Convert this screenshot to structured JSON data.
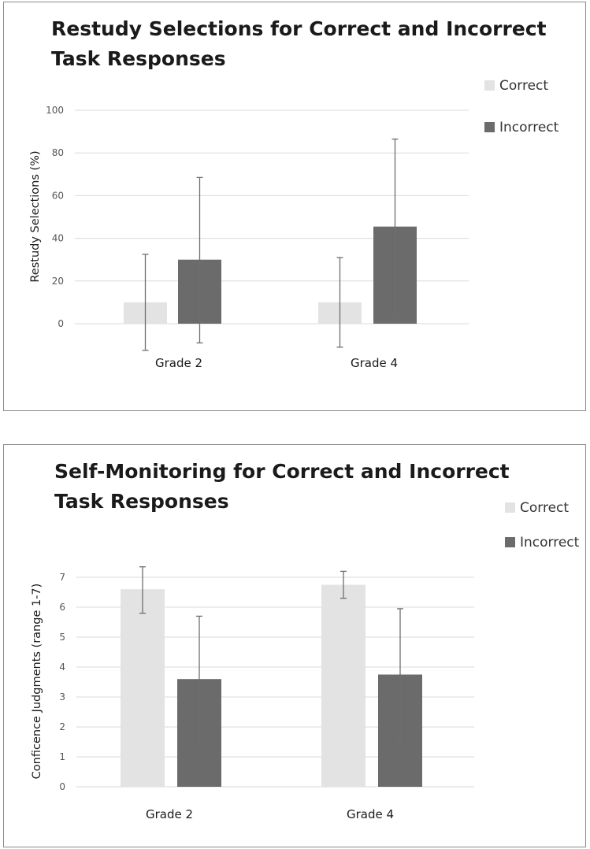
{
  "charts": {
    "restudy": {
      "type": "bar",
      "title_lines": [
        "Restudy Selections for Correct and Incorrect",
        "Task Responses"
      ],
      "ylabel": "Restudy Selections (%)",
      "categories": [
        "Grade 2",
        "Grade 4"
      ],
      "ylim": [
        0,
        100
      ],
      "yticks": [
        "0",
        "20",
        "40",
        "60",
        "80",
        "100"
      ],
      "legend_position": "top-right",
      "grid": true,
      "series": [
        {
          "name": "Correct",
          "color": "#e3e3e3",
          "values": [
            10,
            10
          ],
          "error_low": [
            -12.5,
            -11
          ],
          "error_high": [
            32.5,
            31
          ]
        },
        {
          "name": "Incorrect",
          "color": "#6b6b6b",
          "values": [
            30,
            45.5
          ],
          "error_low": [
            -9,
            4
          ],
          "error_high": [
            68.5,
            86.5
          ]
        }
      ]
    },
    "confidence": {
      "type": "bar",
      "title_lines": [
        "Self-Monitoring for Correct and Incorrect",
        "Task Responses"
      ],
      "ylabel": "Conficence Judgments (range 1-7)",
      "categories": [
        "Grade 2",
        "Grade 4"
      ],
      "ylim": [
        0,
        7
      ],
      "yticks": [
        "0",
        "1",
        "2",
        "3",
        "4",
        "5",
        "6",
        "7"
      ],
      "legend_position": "top-right",
      "grid": true,
      "series": [
        {
          "name": "Correct",
          "color": "#e3e3e3",
          "values": [
            6.6,
            6.75
          ],
          "error_low": [
            5.8,
            6.3
          ],
          "error_high": [
            7.35,
            7.2
          ]
        },
        {
          "name": "Incorrect",
          "color": "#6b6b6b",
          "values": [
            3.6,
            3.75
          ],
          "error_low": [
            1.45,
            1.5
          ],
          "error_high": [
            5.7,
            5.95
          ]
        }
      ]
    }
  },
  "chart_data": [
    {
      "type": "bar",
      "title": "Restudy Selections for Correct and Incorrect Task Responses",
      "xlabel": "",
      "ylabel": "Restudy Selections (%)",
      "categories": [
        "Grade 2",
        "Grade 4"
      ],
      "ylim": [
        0,
        100
      ],
      "grid": true,
      "legend_position": "top-right",
      "series": [
        {
          "name": "Correct",
          "values": [
            10,
            10
          ],
          "error_low": [
            -12.5,
            -11
          ],
          "error_high": [
            32.5,
            31
          ]
        },
        {
          "name": "Incorrect",
          "values": [
            30,
            45.5
          ],
          "error_low": [
            -9,
            4
          ],
          "error_high": [
            68.5,
            86.5
          ]
        }
      ]
    },
    {
      "type": "bar",
      "title": "Self-Monitoring for Correct and Incorrect Task Responses",
      "xlabel": "",
      "ylabel": "Conficence Judgments (range 1-7)",
      "categories": [
        "Grade 2",
        "Grade 4"
      ],
      "ylim": [
        0,
        7
      ],
      "grid": true,
      "legend_position": "top-right",
      "series": [
        {
          "name": "Correct",
          "values": [
            6.6,
            6.75
          ],
          "error_low": [
            5.8,
            6.3
          ],
          "error_high": [
            7.35,
            7.2
          ]
        },
        {
          "name": "Incorrect",
          "values": [
            3.6,
            3.75
          ],
          "error_low": [
            1.45,
            1.5
          ],
          "error_high": [
            5.7,
            5.95
          ]
        }
      ]
    }
  ]
}
